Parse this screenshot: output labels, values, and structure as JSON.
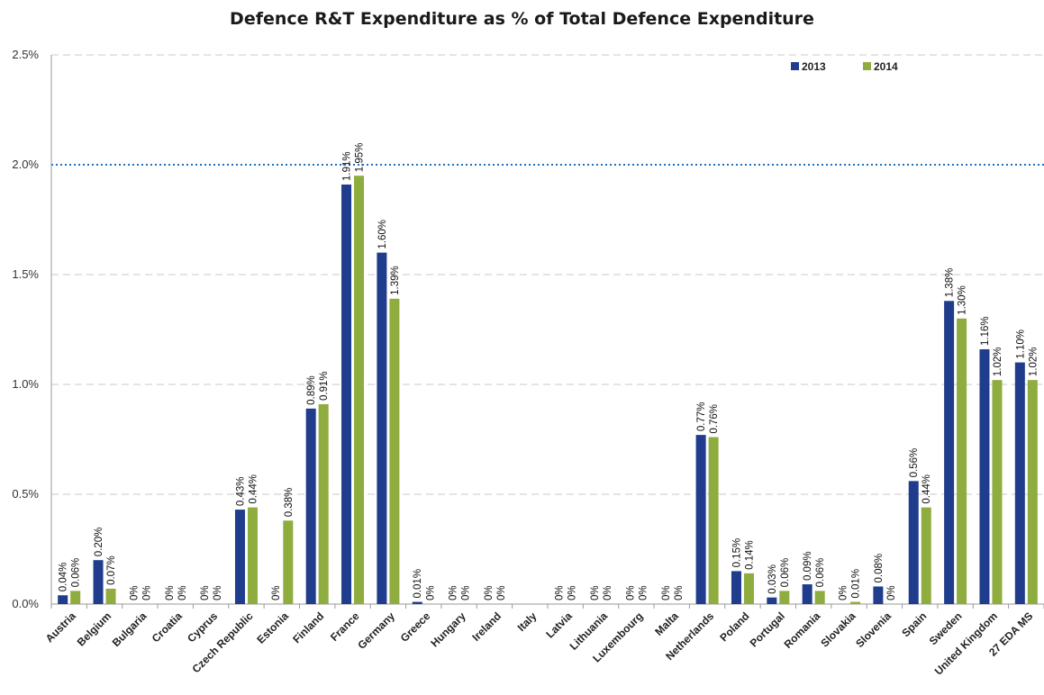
{
  "chart_data": {
    "type": "bar",
    "title": "Defence R&T Expenditure as % of Total Defence Expenditure",
    "xlabel": "",
    "ylabel": "",
    "ylim": [
      0,
      2.5
    ],
    "yticks": [
      "0.0%",
      "0.5%",
      "1.0%",
      "1.5%",
      "2.0%",
      "2.5%"
    ],
    "ytick_values": [
      0,
      0.5,
      1.0,
      1.5,
      2.0,
      2.5
    ],
    "grid": true,
    "legend_position": "top-right",
    "reference_line": 2.0,
    "categories": [
      "Austria",
      "Belgium",
      "Bulgaria",
      "Croatia",
      "Cyprus",
      "Czech Republic",
      "Estonia",
      "Finland",
      "France",
      "Germany",
      "Greece",
      "Hungary",
      "Ireland",
      "Italy",
      "Latvia",
      "Lithuania",
      "Luxembourg",
      "Malta",
      "Netherlands",
      "Poland",
      "Portugal",
      "Romania",
      "Slovakia",
      "Slovenia",
      "Spain",
      "Sweden",
      "United Kingdom",
      "27 EDA MS"
    ],
    "series": [
      {
        "name": "2013",
        "color": "#1f3d8c",
        "values": [
          0.04,
          0.2,
          0,
          0,
          0,
          0.43,
          0,
          0.89,
          1.91,
          1.6,
          0.01,
          0,
          0,
          null,
          0,
          0,
          0,
          0,
          0.77,
          0.15,
          0.03,
          0.09,
          0,
          0.08,
          0.56,
          1.38,
          1.16,
          1.1
        ],
        "labels": [
          "0.04%",
          "0.20%",
          "0%",
          "0%",
          "0%",
          "0.43%",
          "0%",
          "0.89%",
          "1.91%",
          "1.60%",
          "0.01%",
          "0%",
          "0%",
          "",
          "0%",
          "0%",
          "0%",
          "0%",
          "0.77%",
          "0.15%",
          "0.03%",
          "0.09%",
          "0%",
          "0.08%",
          "0.56%",
          "1.38%",
          "1.16%",
          "1.10%"
        ]
      },
      {
        "name": "2014",
        "color": "#8fac3f",
        "values": [
          0.06,
          0.07,
          0,
          0,
          0,
          0.44,
          0.38,
          0.91,
          1.95,
          1.39,
          0,
          0,
          0,
          null,
          0,
          0,
          0,
          0,
          0.76,
          0.14,
          0.06,
          0.06,
          0.01,
          0,
          0.44,
          1.3,
          1.02,
          1.02
        ],
        "labels": [
          "0.06%",
          "0.07%",
          "0%",
          "0%",
          "0%",
          "0.44%",
          "0.38%",
          "0.91%",
          "1.95%",
          "1.39%",
          "0%",
          "0%",
          "0%",
          "",
          "0%",
          "0%",
          "0%",
          "0%",
          "0.76%",
          "0.14%",
          "0.06%",
          "0.06%",
          "0.01%",
          "0%",
          "0.44%",
          "1.30%",
          "1.02%",
          "1.02%"
        ]
      }
    ]
  }
}
